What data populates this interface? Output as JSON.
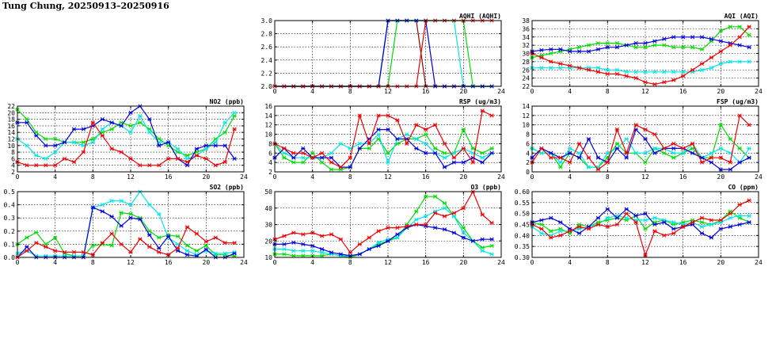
{
  "page": {
    "title": "Tung Chung, 20250913–20250916"
  },
  "colors": {
    "green": "#00dd00",
    "cyan": "#00e6e6",
    "blue": "#0000dd",
    "red": "#ee0000",
    "darkred": "#990000"
  },
  "chart_data": [
    {
      "id": "aqhi",
      "type": "line",
      "title": "AQHI (AQHI)",
      "xlim": [
        0,
        24
      ],
      "ylim": [
        2.0,
        3.0
      ],
      "xticks": [
        0,
        4,
        8,
        12,
        16,
        20,
        24
      ],
      "yticks": [
        2.0,
        2.2,
        2.4,
        2.6,
        2.8,
        3.0
      ],
      "ytick_labels": [
        "2.0",
        "2.2",
        "2.4",
        "2.6",
        "2.8",
        "3.0"
      ],
      "series": [
        {
          "color": "#990000",
          "values": [
            2,
            2,
            2,
            2,
            2,
            2,
            2,
            2,
            2,
            2,
            2,
            2,
            3,
            3,
            3,
            3,
            2,
            2,
            2,
            2,
            2,
            2,
            2,
            2
          ]
        },
        {
          "color": "#00dd00",
          "values": [
            2,
            2,
            2,
            2,
            2,
            2,
            2,
            2,
            2,
            2,
            2,
            2,
            2,
            3,
            3,
            3,
            3,
            3,
            3,
            3,
            3,
            2,
            2,
            2
          ]
        },
        {
          "color": "#00e6e6",
          "values": [
            2,
            2,
            2,
            2,
            2,
            2,
            2,
            2,
            2,
            2,
            2,
            2,
            3,
            3,
            3,
            3,
            3,
            3,
            3,
            3,
            2,
            2,
            2,
            2
          ]
        },
        {
          "color": "#0000dd",
          "values": [
            2,
            2,
            2,
            2,
            2,
            2,
            2,
            2,
            2,
            2,
            2,
            2,
            3,
            3,
            3,
            3,
            3,
            2,
            2,
            2,
            2,
            2,
            2,
            2
          ]
        },
        {
          "color": "#ee0000",
          "values": [
            2,
            2,
            2,
            2,
            2,
            2,
            2,
            2,
            2,
            2,
            2,
            2,
            2,
            2,
            2,
            2,
            3,
            3,
            3,
            3,
            3,
            3,
            3,
            3
          ]
        }
      ]
    },
    {
      "id": "aqi",
      "type": "line",
      "title": "AQI (AQI)",
      "xlim": [
        0,
        24
      ],
      "ylim": [
        22,
        38
      ],
      "xticks": [
        0,
        4,
        8,
        12,
        16,
        20,
        24
      ],
      "yticks": [
        22,
        24,
        26,
        28,
        30,
        32,
        34,
        36,
        38
      ],
      "series": [
        {
          "color": "#00dd00",
          "values": [
            29,
            29.5,
            30,
            30.5,
            31,
            31.5,
            32,
            32.5,
            32.5,
            32.5,
            32,
            31.5,
            31.5,
            32,
            32,
            31.5,
            31.5,
            31.5,
            31,
            33,
            35.5,
            36.5,
            36.5,
            34.5
          ]
        },
        {
          "color": "#00e6e6",
          "values": [
            26.5,
            26.5,
            26.5,
            26.5,
            26.5,
            26.5,
            26.5,
            26.5,
            26,
            26,
            25.5,
            25.5,
            25.5,
            25.5,
            25.5,
            25.5,
            25.5,
            25.5,
            26,
            26.5,
            27.5,
            28,
            28,
            28
          ]
        },
        {
          "color": "#0000dd",
          "values": [
            30.5,
            30.8,
            31,
            31,
            30.5,
            30.5,
            30.5,
            31,
            31.5,
            31.5,
            32,
            32.5,
            32.5,
            33,
            33.5,
            34,
            34,
            34,
            34,
            33.5,
            33,
            32.5,
            32,
            31.5
          ]
        },
        {
          "color": "#ee0000",
          "values": [
            30,
            29,
            28,
            27.5,
            27,
            26.5,
            26,
            25.5,
            25,
            25,
            24.5,
            24,
            23,
            22.5,
            23,
            23.5,
            24.5,
            26,
            27.5,
            29,
            30.5,
            32,
            34,
            36.5
          ]
        }
      ]
    },
    {
      "id": "no2",
      "type": "line",
      "title": "NO2 (ppb)",
      "xlim": [
        0,
        24
      ],
      "ylim": [
        2,
        22
      ],
      "xticks": [
        0,
        4,
        8,
        12,
        16,
        20,
        24
      ],
      "yticks": [
        2,
        4,
        6,
        8,
        10,
        12,
        14,
        16,
        18,
        20,
        22
      ],
      "series": [
        {
          "color": "#00dd00",
          "values": [
            21,
            18,
            14,
            12,
            12,
            11,
            11,
            11,
            12,
            14,
            15,
            17,
            16,
            17,
            15,
            12,
            10,
            8,
            7,
            8,
            9,
            12,
            14,
            19
          ]
        },
        {
          "color": "#00e6e6",
          "values": [
            12,
            10,
            7,
            6,
            8,
            11,
            11,
            10,
            11,
            15,
            17,
            16,
            14,
            19,
            14,
            11,
            11,
            9,
            6,
            7,
            9,
            11,
            17,
            20
          ]
        },
        {
          "color": "#0000dd",
          "values": [
            17,
            17,
            13,
            10,
            10,
            11,
            15,
            15,
            16,
            18,
            17,
            16,
            20,
            22,
            18,
            10,
            11,
            6,
            4,
            9,
            10,
            10,
            10,
            6
          ]
        },
        {
          "color": "#ee0000",
          "values": [
            5,
            4,
            4,
            4,
            4,
            6,
            5,
            8,
            17,
            13,
            9,
            8,
            6,
            4,
            4,
            4,
            6,
            6,
            5,
            7,
            6,
            4,
            5,
            15
          ]
        }
      ]
    },
    {
      "id": "rsp",
      "type": "line",
      "title": "RSP (ug/m3)",
      "xlim": [
        0,
        24
      ],
      "ylim": [
        2,
        16
      ],
      "xticks": [
        0,
        4,
        8,
        12,
        16,
        20,
        24
      ],
      "yticks": [
        2,
        4,
        6,
        8,
        10,
        12,
        14,
        16
      ],
      "series": [
        {
          "color": "#00dd00",
          "values": [
            8,
            5,
            4,
            4,
            6,
            4,
            2.5,
            2.5,
            3,
            7,
            7,
            9,
            6,
            8,
            9,
            9,
            10,
            7,
            6,
            6,
            11,
            7,
            6,
            7
          ]
        },
        {
          "color": "#00e6e6",
          "values": [
            8,
            6,
            5,
            5,
            5,
            5,
            6,
            8,
            7,
            8,
            8,
            10,
            4,
            9,
            10,
            9,
            8,
            6,
            5,
            6,
            7,
            6,
            5,
            6
          ]
        },
        {
          "color": "#0000dd",
          "values": [
            5,
            7,
            5,
            7,
            5,
            5,
            5,
            3,
            3,
            7,
            9,
            11,
            11,
            9,
            9,
            7,
            6,
            6,
            3,
            4,
            4,
            5,
            4,
            6
          ]
        },
        {
          "color": "#ee0000",
          "values": [
            8,
            7,
            6,
            6,
            5,
            6,
            4,
            3,
            5,
            14,
            8,
            14,
            14,
            13,
            8,
            12,
            11,
            12,
            8,
            5,
            7,
            4,
            15,
            14
          ]
        }
      ]
    },
    {
      "id": "fsp",
      "type": "line",
      "title": "FSP (ug/m3)",
      "xlim": [
        0,
        24
      ],
      "ylim": [
        0,
        14
      ],
      "xticks": [
        0,
        4,
        8,
        12,
        16,
        20,
        24
      ],
      "yticks": [
        0,
        2,
        4,
        6,
        8,
        10,
        12,
        14
      ],
      "series": [
        {
          "color": "#00dd00",
          "values": [
            5,
            4,
            4,
            1,
            4,
            3,
            1,
            1,
            3,
            6,
            4,
            4,
            2,
            5,
            4,
            3,
            4,
            5,
            3,
            3,
            10,
            7,
            5,
            3
          ]
        },
        {
          "color": "#00e6e6",
          "values": [
            5,
            4,
            4,
            2,
            5,
            4,
            1,
            1,
            4,
            5,
            7,
            4,
            4,
            5,
            5,
            4,
            4,
            6,
            3,
            4,
            5,
            4,
            2,
            5
          ]
        },
        {
          "color": "#0000dd",
          "values": [
            3,
            5,
            4,
            3,
            4,
            3,
            7,
            3,
            2,
            5,
            3,
            9,
            7,
            4,
            5,
            5,
            5,
            4,
            3,
            2,
            0.5,
            0.5,
            2,
            3
          ]
        },
        {
          "color": "#ee0000",
          "values": [
            2,
            5,
            3,
            3,
            2,
            6,
            3,
            0.5,
            2,
            9,
            4,
            10,
            9,
            8,
            5,
            6,
            5,
            6,
            2,
            3,
            3,
            2,
            12,
            10
          ]
        }
      ]
    },
    {
      "id": "so2",
      "type": "line",
      "title": "SO2 (ppb)",
      "xlim": [
        0,
        24
      ],
      "ylim": [
        0.0,
        0.5
      ],
      "xticks": [
        0,
        4,
        8,
        12,
        16,
        20,
        24
      ],
      "yticks": [
        0.0,
        0.1,
        0.2,
        0.3,
        0.4,
        0.5
      ],
      "ytick_labels": [
        "0.0",
        "0.1",
        "0.2",
        "0.3",
        "0.4",
        "0.5"
      ],
      "series": [
        {
          "color": "#00dd00",
          "values": [
            0.1,
            0.15,
            0.19,
            0.1,
            0.15,
            0.03,
            0.01,
            0.01,
            0.09,
            0.1,
            0.09,
            0.34,
            0.33,
            0.3,
            0.2,
            0.15,
            0.17,
            0.16,
            0.09,
            0.05,
            0.09,
            0.02,
            0.02,
            0.01
          ]
        },
        {
          "color": "#00e6e6",
          "values": [
            0.03,
            0.05,
            0.01,
            0.01,
            0.01,
            0.01,
            0.01,
            0.01,
            0.38,
            0.4,
            0.43,
            0.43,
            0.4,
            0.5,
            0.4,
            0.33,
            0.15,
            0.1,
            0.05,
            0.02,
            0.05,
            0.03,
            0.03,
            0.04
          ]
        },
        {
          "color": "#0000dd",
          "values": [
            0.0,
            0.08,
            0.0,
            0.0,
            0.0,
            0.0,
            0.0,
            0.0,
            0.38,
            0.35,
            0.31,
            0.24,
            0.3,
            0.29,
            0.17,
            0.07,
            0.16,
            0.05,
            0.02,
            0.01,
            0.06,
            0.0,
            0.0,
            0.03
          ]
        },
        {
          "color": "#ee0000",
          "values": [
            0.0,
            0.05,
            0.11,
            0.08,
            0.05,
            0.04,
            0.04,
            0.04,
            0.02,
            0.11,
            0.18,
            0.1,
            0.04,
            0.14,
            0.08,
            0.04,
            0.02,
            0.07,
            0.23,
            0.18,
            0.12,
            0.15,
            0.11,
            0.11
          ]
        }
      ]
    },
    {
      "id": "o3",
      "type": "line",
      "title": "O3 (ppb)",
      "xlim": [
        0,
        24
      ],
      "ylim": [
        10,
        50
      ],
      "xticks": [
        0,
        4,
        8,
        12,
        16,
        20,
        24
      ],
      "yticks": [
        10,
        20,
        30,
        40,
        50
      ],
      "series": [
        {
          "color": "#00dd00",
          "values": [
            12,
            12,
            11,
            11,
            11,
            11,
            12,
            11,
            10,
            12,
            15,
            18,
            20,
            22,
            30,
            38,
            47,
            47,
            43,
            35,
            28,
            20,
            16,
            17
          ]
        },
        {
          "color": "#00e6e6",
          "values": [
            15,
            15,
            14,
            14,
            14,
            13,
            12,
            11,
            11,
            12,
            15,
            19,
            21,
            22,
            28,
            33,
            35,
            38,
            40,
            35,
            25,
            20,
            14,
            12
          ]
        },
        {
          "color": "#0000dd",
          "values": [
            18,
            18,
            19,
            18,
            17,
            15,
            13,
            12,
            11,
            12,
            15,
            17,
            20,
            24,
            28,
            30,
            29,
            28,
            27,
            25,
            22,
            20,
            21,
            21
          ]
        },
        {
          "color": "#ee0000",
          "values": [
            21,
            23,
            25,
            24,
            25,
            23,
            24,
            21,
            13,
            18,
            22,
            26,
            28,
            28,
            29,
            30,
            30,
            37,
            35,
            37,
            40,
            50,
            36,
            31
          ]
        }
      ]
    },
    {
      "id": "co",
      "type": "line",
      "title": "CO (ppm)",
      "xlim": [
        0,
        24
      ],
      "ylim": [
        0.3,
        0.6
      ],
      "xticks": [
        0,
        4,
        8,
        12,
        16,
        20,
        24
      ],
      "yticks": [
        0.3,
        0.35,
        0.4,
        0.45,
        0.5,
        0.55,
        0.6
      ],
      "ytick_labels": [
        "0.30",
        "0.35",
        "0.40",
        "0.45",
        "0.50",
        "0.55",
        "0.60"
      ],
      "series": [
        {
          "color": "#00dd00",
          "values": [
            0.46,
            0.45,
            0.42,
            0.43,
            0.41,
            0.45,
            0.44,
            0.46,
            0.47,
            0.48,
            0.47,
            0.49,
            0.43,
            0.46,
            0.47,
            0.45,
            0.46,
            0.47,
            0.46,
            0.45,
            0.47,
            0.51,
            0.48,
            0.46
          ]
        },
        {
          "color": "#00e6e6",
          "values": [
            0.44,
            0.41,
            0.4,
            0.42,
            0.42,
            0.43,
            0.44,
            0.45,
            0.48,
            0.49,
            0.48,
            0.47,
            0.47,
            0.48,
            0.47,
            0.46,
            0.45,
            0.46,
            0.44,
            0.45,
            0.46,
            0.48,
            0.49,
            0.49
          ]
        },
        {
          "color": "#0000dd",
          "values": [
            0.46,
            0.47,
            0.48,
            0.46,
            0.43,
            0.41,
            0.44,
            0.48,
            0.52,
            0.48,
            0.52,
            0.49,
            0.5,
            0.45,
            0.46,
            0.43,
            0.44,
            0.45,
            0.41,
            0.39,
            0.43,
            0.44,
            0.45,
            0.46
          ]
        },
        {
          "color": "#ee0000",
          "values": [
            0.45,
            0.43,
            0.39,
            0.4,
            0.42,
            0.44,
            0.43,
            0.45,
            0.44,
            0.45,
            0.5,
            0.46,
            0.31,
            0.42,
            0.4,
            0.41,
            0.44,
            0.46,
            0.48,
            0.47,
            0.47,
            0.5,
            0.54,
            0.56
          ]
        }
      ]
    }
  ]
}
